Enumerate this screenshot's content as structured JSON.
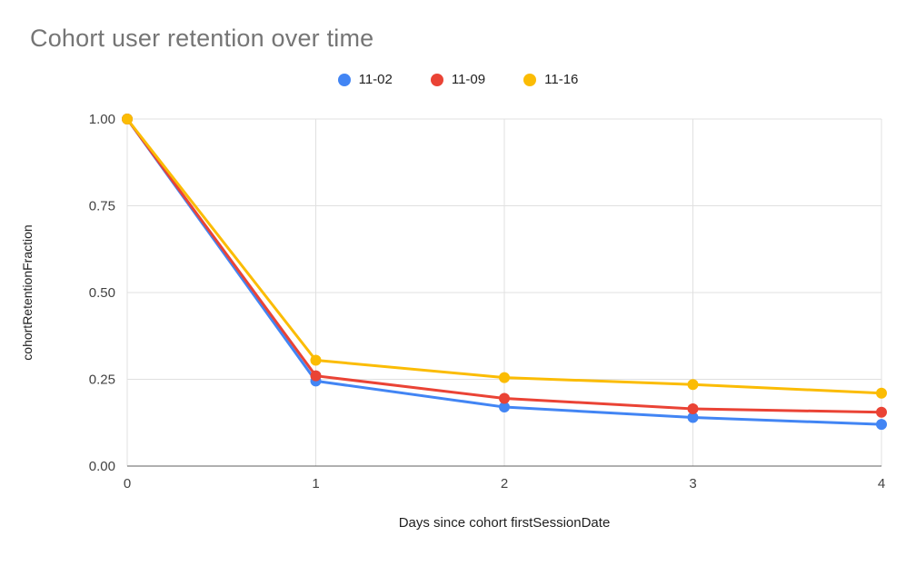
{
  "chart_data": {
    "type": "line",
    "title": "Cohort user retention over time",
    "xlabel": "Days since cohort firstSessionDate",
    "ylabel": "cohortRetentionFraction",
    "categories": [
      0,
      1,
      2,
      3,
      4
    ],
    "x_tick_labels": [
      "0",
      "1",
      "2",
      "3",
      "4"
    ],
    "y_ticks": [
      0,
      0.25,
      0.5,
      0.75,
      1
    ],
    "y_tick_labels": [
      "0.00",
      "0.25",
      "0.50",
      "0.75",
      "1.00"
    ],
    "ylim": [
      0,
      1
    ],
    "grid": true,
    "legend_position": "top",
    "series": [
      {
        "name": "11-02",
        "color": "#4285F4",
        "values": [
          1.0,
          0.245,
          0.17,
          0.14,
          0.12
        ]
      },
      {
        "name": "11-09",
        "color": "#EA4335",
        "values": [
          1.0,
          0.26,
          0.195,
          0.165,
          0.155
        ]
      },
      {
        "name": "11-16",
        "color": "#FBBC04",
        "values": [
          1.0,
          0.305,
          0.255,
          0.235,
          0.21
        ]
      }
    ],
    "colors": {
      "title": "#757575",
      "gridline": "#e0e0e0",
      "baseline": "#616161",
      "tick_label": "#424242"
    }
  }
}
